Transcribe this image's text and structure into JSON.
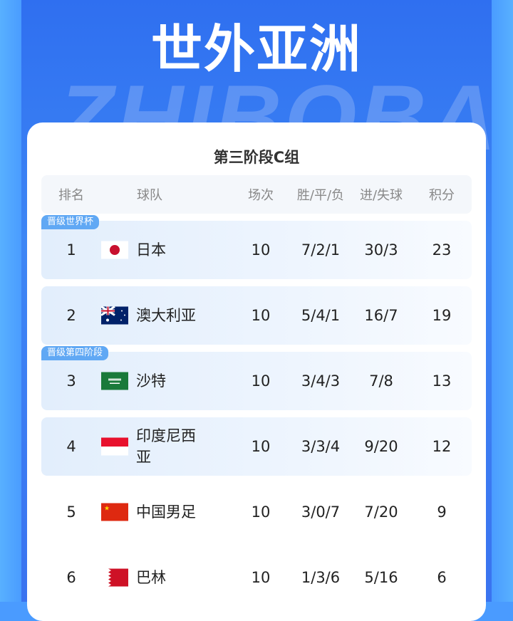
{
  "header": {
    "title": "世外亚洲",
    "watermark": "ZHIBOBA"
  },
  "table": {
    "title": "第三阶段C组",
    "columns": [
      "排名",
      "球队",
      "场次",
      "胜/平/负",
      "进/失球",
      "积分"
    ],
    "rows": [
      {
        "rank": "1",
        "team": "日本",
        "flag": "japan-flag",
        "played": "10",
        "wdl": "7/2/1",
        "goals": "30/3",
        "points": "23",
        "badge": "晋级世界杯"
      },
      {
        "rank": "2",
        "team": "澳大利亚",
        "flag": "australia-flag",
        "played": "10",
        "wdl": "5/4/1",
        "goals": "16/7",
        "points": "19"
      },
      {
        "rank": "3",
        "team": "沙特",
        "flag": "saudi-arabia-flag",
        "played": "10",
        "wdl": "3/4/3",
        "goals": "7/8",
        "points": "13",
        "badge": "晋级第四阶段"
      },
      {
        "rank": "4",
        "team": "印度尼西亚",
        "flag": "indonesia-flag",
        "played": "10",
        "wdl": "3/3/4",
        "goals": "9/20",
        "points": "12"
      },
      {
        "rank": "5",
        "team": "中国男足",
        "flag": "china-flag",
        "played": "10",
        "wdl": "3/0/7",
        "goals": "7/20",
        "points": "9"
      },
      {
        "rank": "6",
        "team": "巴林",
        "flag": "bahrain-flag",
        "played": "10",
        "wdl": "1/3/6",
        "goals": "5/16",
        "points": "6"
      }
    ]
  },
  "colors": {
    "accent": "#3a7df2",
    "badge": "#60a8f4"
  }
}
